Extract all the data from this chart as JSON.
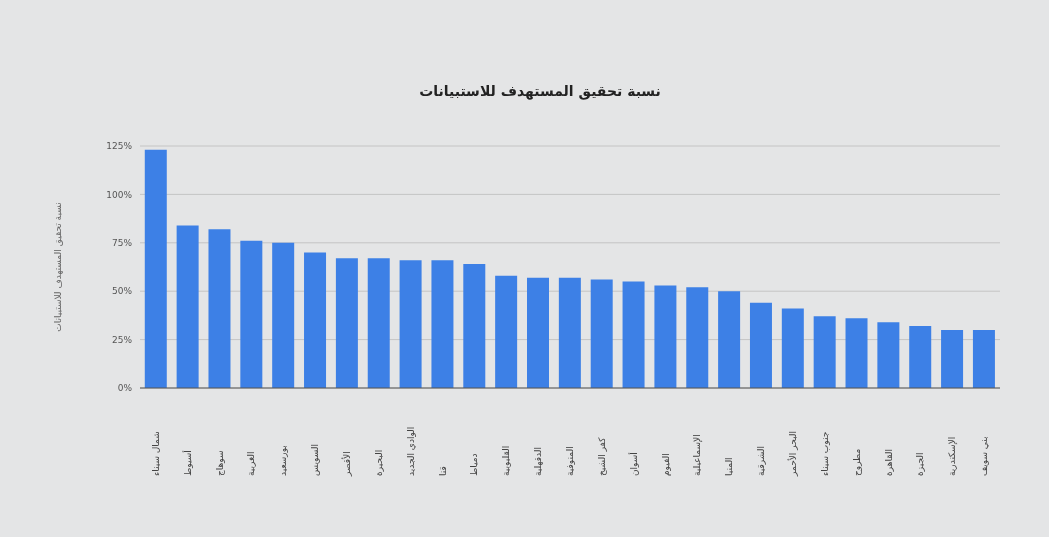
{
  "chart_data": {
    "type": "bar",
    "title": "نسبة تحقيق المستهدف للاستبيانات",
    "ylabel": "نسبة تحقيق المستهدف للاستبيانات",
    "categories": [
      "شمال سيناء",
      "أسيوط",
      "سوهاج",
      "الغربية",
      "بورسعيد",
      "السويس",
      "الأقصر",
      "البحيرة",
      "الوادي الجديد",
      "قنا",
      "دمياط",
      "القليوبية",
      "الدقهلية",
      "المنوفية",
      "كفر الشيخ",
      "أسوان",
      "الفيوم",
      "الإسماعيلية",
      "المنيا",
      "الشرقية",
      "البحر الأحمر",
      "جنوب سيناء",
      "مطروح",
      "القاهرة",
      "الجيزة",
      "الإسكندرية",
      "بني سويف"
    ],
    "values": [
      123,
      84,
      82,
      76,
      75,
      70,
      67,
      67,
      66,
      66,
      64,
      58,
      57,
      57,
      56,
      55,
      53,
      52,
      50,
      44,
      41,
      37,
      36,
      34,
      32,
      30,
      30
    ],
    "color": "#3d80e6",
    "ylim": [
      0,
      125
    ],
    "yticks": [
      {
        "value": 0,
        "label": "0%"
      },
      {
        "value": 25,
        "label": "25%"
      },
      {
        "value": 50,
        "label": "50%"
      },
      {
        "value": 75,
        "label": "75%"
      },
      {
        "value": 100,
        "label": "100%"
      },
      {
        "value": 125,
        "label": "125%"
      }
    ],
    "grid": "y"
  }
}
